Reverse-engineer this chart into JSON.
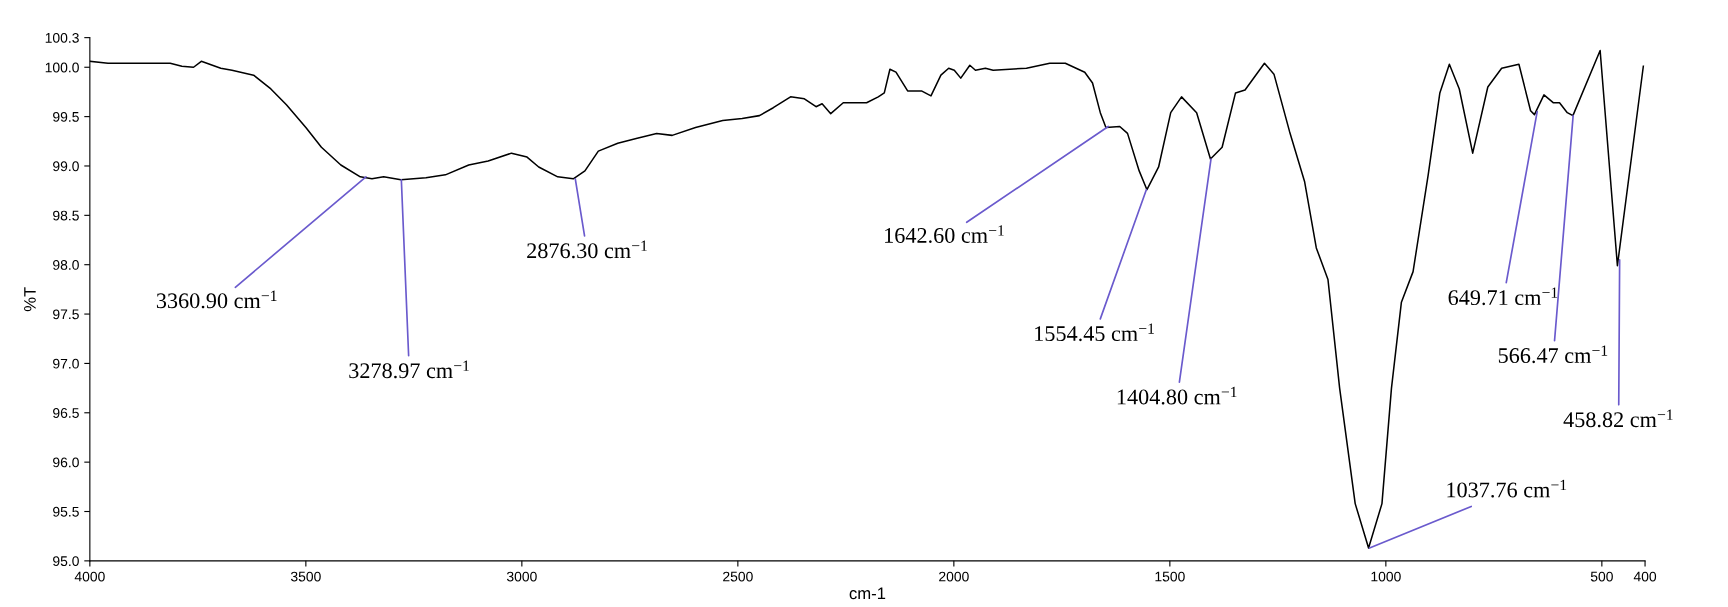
{
  "chart_data": {
    "type": "line",
    "xlabel": "cm-1",
    "ylabel": "%T",
    "xlim": [
      4000,
      400
    ],
    "ylim": [
      95.0,
      100.3
    ],
    "xticks": [
      4000,
      3500,
      3000,
      2500,
      2000,
      1500,
      1000,
      500,
      400
    ],
    "yticks": [
      {
        "value": 95.0,
        "label": "95.0"
      },
      {
        "value": 95.5,
        "label": "95.5"
      },
      {
        "value": 96.0,
        "label": "96.0"
      },
      {
        "value": 96.5,
        "label": "96.5"
      },
      {
        "value": 97.0,
        "label": "97.0"
      },
      {
        "value": 97.5,
        "label": "97.5"
      },
      {
        "value": 98.0,
        "label": "98.0"
      },
      {
        "value": 98.5,
        "label": "98.5"
      },
      {
        "value": 99.0,
        "label": "99.0"
      },
      {
        "value": 99.5,
        "label": "99.5"
      },
      {
        "value": 100.0,
        "label": "100.0"
      },
      {
        "value": 100.3,
        "label": "100.3"
      }
    ],
    "grid": false,
    "marker": "none",
    "line_style": "solid",
    "series": [
      {
        "color": "#000000",
        "x": [
          4000,
          3958,
          3814,
          3787,
          3760,
          3742,
          3697,
          3671,
          3621,
          3581,
          3545,
          3500,
          3464,
          3419,
          3374,
          3347,
          3320,
          3280,
          3222,
          3177,
          3123,
          3078,
          3024,
          2988,
          2961,
          2917,
          2881,
          2854,
          2823,
          2778,
          2733,
          2688,
          2652,
          2598,
          2535,
          2490,
          2450,
          2418,
          2378,
          2346,
          2319,
          2305,
          2285,
          2256,
          2202,
          2175,
          2161,
          2148,
          2134,
          2107,
          2075,
          2053,
          2030,
          2012,
          1999,
          1984,
          1963,
          1950,
          1927,
          1909,
          1832,
          1778,
          1742,
          1697,
          1679,
          1661,
          1648,
          1616,
          1598,
          1571,
          1553,
          1526,
          1498,
          1473,
          1438,
          1406,
          1379,
          1348,
          1326,
          1281,
          1259,
          1223,
          1188,
          1161,
          1134,
          1107,
          1071,
          1040,
          1009,
          987,
          964,
          937,
          902,
          875,
          853,
          830,
          799,
          764,
          732,
          692,
          665,
          656,
          634,
          612,
          598,
          580,
          567,
          504,
          464,
          404
        ],
        "values": [
          100.06,
          100.04,
          100.04,
          100.01,
          100.0,
          100.06,
          99.99,
          99.97,
          99.92,
          99.78,
          99.62,
          99.39,
          99.19,
          99.01,
          98.89,
          98.87,
          98.89,
          98.86,
          98.88,
          98.91,
          99.01,
          99.05,
          99.13,
          99.09,
          98.99,
          98.89,
          98.87,
          98.95,
          99.15,
          99.23,
          99.28,
          99.33,
          99.31,
          99.39,
          99.46,
          99.48,
          99.51,
          99.59,
          99.7,
          99.68,
          99.6,
          99.63,
          99.53,
          99.64,
          99.64,
          99.7,
          99.74,
          99.98,
          99.95,
          99.76,
          99.76,
          99.71,
          99.92,
          99.99,
          99.97,
          99.89,
          100.02,
          99.97,
          99.99,
          99.97,
          99.99,
          100.04,
          100.04,
          99.95,
          99.84,
          99.54,
          99.39,
          99.4,
          99.33,
          98.95,
          98.76,
          98.99,
          99.54,
          99.7,
          99.54,
          99.07,
          99.19,
          99.74,
          99.77,
          100.04,
          99.93,
          99.35,
          98.84,
          98.17,
          97.85,
          96.75,
          95.58,
          95.13,
          95.58,
          96.75,
          97.62,
          97.93,
          98.91,
          99.74,
          100.03,
          99.78,
          99.13,
          99.8,
          99.99,
          100.03,
          99.56,
          99.52,
          99.72,
          99.64,
          99.64,
          99.54,
          99.51,
          100.17,
          97.99,
          100.01
        ]
      }
    ],
    "annotations": [
      {
        "text": "3360.90 cm$^{−1}$",
        "x": 3360.9,
        "y": 98.89
      },
      {
        "text": "3278.97 cm$^{−1}$",
        "x": 3278.97,
        "y": 98.86
      },
      {
        "text": "2876.30 cm$^{−1}$",
        "x": 2876.3,
        "y": 98.87
      },
      {
        "text": "1642.60 cm$^{−1}$",
        "x": 1642.6,
        "y": 99.4
      },
      {
        "text": "1554.45 cm$^{−1}$",
        "x": 1554.45,
        "y": 98.76
      },
      {
        "text": "1404.80 cm$^{−1}$",
        "x": 1404.8,
        "y": 99.07
      },
      {
        "text": "1037.76 cm$^{−1}$",
        "x": 1037.76,
        "y": 95.13
      },
      {
        "text": "649.71 cm$^{−1}$",
        "x": 649.71,
        "y": 99.55
      },
      {
        "text": "566.47 cm$^{−1}$",
        "x": 566.47,
        "y": 99.51
      },
      {
        "text": "458.82 cm$^{−1}$",
        "x": 458.82,
        "y": 98.05
      }
    ]
  }
}
